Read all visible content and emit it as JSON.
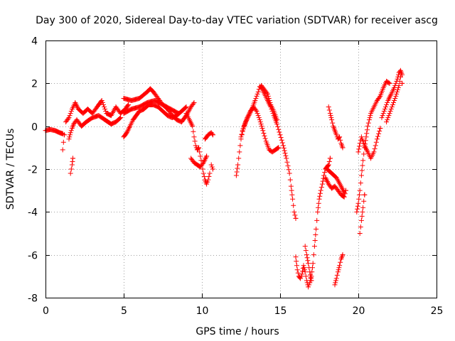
{
  "chart_data": {
    "type": "scatter",
    "title": "Day 300 of 2020, Sidereal Day-to-day VTEC variation (SDTVAR) for receiver ascg",
    "xlabel": "GPS time / hours",
    "ylabel": "SDTVAR / TECUs",
    "xlim": [
      0,
      25
    ],
    "ylim": [
      -8,
      4
    ],
    "xticks": [
      0,
      5,
      10,
      15,
      20,
      25
    ],
    "yticks": [
      -8,
      -6,
      -4,
      -2,
      0,
      2,
      4
    ],
    "grid": true,
    "marker": "plus",
    "color": "#ff0000",
    "series": [
      {
        "name": "SDTVAR",
        "segments": [
          [
            [
              0.0,
              -0.2
            ],
            [
              0.3,
              -0.15
            ],
            [
              0.6,
              -0.2
            ],
            [
              0.9,
              -0.3
            ],
            [
              1.1,
              -0.35
            ]
          ],
          [
            [
              1.1,
              -1.1
            ],
            [
              1.2,
              -0.4
            ]
          ],
          [
            [
              1.3,
              0.2
            ],
            [
              1.5,
              0.4
            ],
            [
              1.7,
              0.8
            ],
            [
              1.9,
              1.1
            ],
            [
              2.1,
              0.8
            ],
            [
              2.4,
              0.6
            ],
            [
              2.7,
              0.8
            ],
            [
              3.0,
              0.6
            ],
            [
              3.3,
              0.9
            ],
            [
              3.6,
              1.2
            ],
            [
              3.9,
              0.6
            ],
            [
              4.2,
              0.5
            ],
            [
              4.5,
              0.9
            ],
            [
              4.8,
              0.6
            ],
            [
              5.1,
              0.8
            ],
            [
              5.3,
              1.0
            ]
          ],
          [
            [
              1.5,
              -0.6
            ],
            [
              1.6,
              -0.3
            ],
            [
              1.7,
              -0.1
            ],
            [
              1.8,
              0.1
            ],
            [
              2.0,
              0.3
            ],
            [
              2.3,
              0.0
            ],
            [
              2.6,
              0.2
            ],
            [
              3.0,
              0.4
            ],
            [
              3.4,
              0.5
            ],
            [
              3.8,
              0.3
            ],
            [
              4.2,
              0.1
            ],
            [
              4.5,
              0.2
            ],
            [
              4.8,
              0.4
            ]
          ],
          [
            [
              1.6,
              -2.2
            ],
            [
              1.7,
              -1.8
            ],
            [
              1.75,
              -1.5
            ]
          ],
          [
            [
              5.0,
              1.3
            ],
            [
              5.5,
              1.2
            ],
            [
              6.0,
              1.3
            ],
            [
              6.5,
              1.6
            ],
            [
              6.7,
              1.75
            ],
            [
              6.9,
              1.6
            ],
            [
              7.2,
              1.3
            ],
            [
              7.5,
              1.0
            ],
            [
              7.8,
              0.8
            ],
            [
              8.1,
              0.5
            ],
            [
              8.4,
              0.3
            ],
            [
              8.7,
              0.2
            ],
            [
              9.0,
              0.5
            ],
            [
              9.3,
              0.9
            ],
            [
              9.5,
              1.1
            ]
          ],
          [
            [
              5.0,
              -0.5
            ],
            [
              5.2,
              -0.3
            ],
            [
              5.4,
              0.0
            ],
            [
              5.6,
              0.3
            ],
            [
              5.8,
              0.5
            ],
            [
              6.0,
              0.7
            ],
            [
              6.3,
              0.8
            ],
            [
              6.6,
              1.0
            ],
            [
              6.9,
              1.0
            ],
            [
              7.2,
              0.9
            ],
            [
              7.5,
              0.7
            ],
            [
              7.8,
              0.5
            ],
            [
              8.1,
              0.4
            ],
            [
              8.4,
              0.5
            ],
            [
              8.7,
              0.7
            ],
            [
              9.0,
              0.9
            ]
          ],
          [
            [
              5.0,
              0.6
            ],
            [
              5.5,
              0.8
            ],
            [
              6.0,
              0.9
            ],
            [
              6.5,
              1.1
            ],
            [
              7.0,
              1.2
            ],
            [
              7.5,
              1.0
            ],
            [
              8.0,
              0.8
            ],
            [
              8.5,
              0.6
            ]
          ],
          [
            [
              9.0,
              0.6
            ],
            [
              9.2,
              0.3
            ],
            [
              9.4,
              0.0
            ],
            [
              9.5,
              -0.5
            ],
            [
              9.6,
              -0.9
            ],
            [
              9.7,
              -1.1
            ],
            [
              9.8,
              -1.0
            ],
            [
              9.9,
              -1.4
            ],
            [
              10.0,
              -1.8
            ],
            [
              10.1,
              -2.2
            ],
            [
              10.2,
              -2.5
            ],
            [
              10.3,
              -2.7
            ],
            [
              10.4,
              -2.5
            ],
            [
              10.5,
              -2.2
            ]
          ],
          [
            [
              9.3,
              -1.5
            ],
            [
              9.5,
              -1.7
            ],
            [
              9.7,
              -1.8
            ],
            [
              9.9,
              -1.9
            ],
            [
              10.1,
              -1.7
            ],
            [
              10.3,
              -1.4
            ]
          ],
          [
            [
              10.2,
              -0.6
            ],
            [
              10.4,
              -0.4
            ],
            [
              10.6,
              -0.3
            ],
            [
              10.7,
              -0.4
            ]
          ],
          [
            [
              10.6,
              -1.8
            ],
            [
              10.7,
              -2.0
            ]
          ],
          [
            [
              12.2,
              -2.3
            ],
            [
              12.3,
              -1.8
            ],
            [
              12.4,
              -1.2
            ],
            [
              12.5,
              -0.6
            ],
            [
              12.6,
              -0.2
            ],
            [
              12.8,
              0.2
            ],
            [
              13.0,
              0.5
            ],
            [
              13.2,
              0.8
            ],
            [
              13.4,
              1.2
            ],
            [
              13.6,
              1.6
            ],
            [
              13.7,
              1.85
            ],
            [
              13.8,
              1.8
            ],
            [
              14.0,
              1.5
            ],
            [
              14.2,
              1.2
            ],
            [
              14.4,
              0.9
            ],
            [
              14.6,
              0.5
            ],
            [
              14.8,
              0.1
            ],
            [
              15.0,
              -0.4
            ],
            [
              15.2,
              -0.9
            ],
            [
              15.4,
              -1.5
            ],
            [
              15.6,
              -2.2
            ],
            [
              15.7,
              -2.8
            ],
            [
              15.8,
              -3.4
            ],
            [
              15.9,
              -4.0
            ],
            [
              16.0,
              -4.3
            ]
          ],
          [
            [
              12.5,
              -0.5
            ],
            [
              12.7,
              0.0
            ],
            [
              12.9,
              0.4
            ],
            [
              13.1,
              0.7
            ],
            [
              13.3,
              0.9
            ],
            [
              13.5,
              0.7
            ],
            [
              13.7,
              0.3
            ],
            [
              13.9,
              -0.2
            ],
            [
              14.1,
              -0.7
            ],
            [
              14.3,
              -1.1
            ],
            [
              14.5,
              -1.2
            ],
            [
              14.7,
              -1.1
            ],
            [
              14.9,
              -1.0
            ]
          ],
          [
            [
              13.8,
              1.9
            ],
            [
              14.0,
              1.7
            ],
            [
              14.2,
              1.5
            ],
            [
              14.4,
              1.0
            ],
            [
              14.6,
              0.7
            ],
            [
              14.8,
              0.3
            ]
          ],
          [
            [
              16.0,
              -6.1
            ],
            [
              16.1,
              -6.7
            ],
            [
              16.2,
              -7.0
            ],
            [
              16.3,
              -7.1
            ],
            [
              16.4,
              -6.9
            ],
            [
              16.5,
              -6.5
            ],
            [
              16.6,
              -6.8
            ],
            [
              16.7,
              -7.2
            ],
            [
              16.8,
              -7.5
            ],
            [
              16.9,
              -7.3
            ],
            [
              17.0,
              -7.0
            ],
            [
              17.1,
              -6.4
            ],
            [
              17.2,
              -5.6
            ],
            [
              17.3,
              -4.8
            ],
            [
              17.4,
              -4.0
            ],
            [
              17.5,
              -3.4
            ],
            [
              17.6,
              -3.0
            ],
            [
              17.7,
              -2.7
            ],
            [
              17.8,
              -2.3
            ],
            [
              17.9,
              -2.0
            ],
            [
              18.0,
              -1.9
            ],
            [
              18.1,
              -1.8
            ],
            [
              18.2,
              -1.5
            ]
          ],
          [
            [
              16.6,
              -5.6
            ],
            [
              16.7,
              -6.0
            ],
            [
              16.8,
              -6.4
            ],
            [
              16.9,
              -6.8
            ],
            [
              17.0,
              -7.2
            ]
          ],
          [
            [
              17.9,
              -2.4
            ],
            [
              18.1,
              -2.7
            ],
            [
              18.3,
              -2.9
            ],
            [
              18.5,
              -2.8
            ],
            [
              18.7,
              -3.0
            ],
            [
              18.9,
              -3.2
            ],
            [
              19.1,
              -3.3
            ],
            [
              19.2,
              -3.0
            ]
          ],
          [
            [
              18.0,
              -2.0
            ],
            [
              18.3,
              -2.2
            ],
            [
              18.6,
              -2.4
            ],
            [
              18.9,
              -2.8
            ],
            [
              19.1,
              -3.1
            ]
          ],
          [
            [
              18.1,
              0.9
            ],
            [
              18.2,
              0.6
            ],
            [
              18.3,
              0.3
            ],
            [
              18.4,
              0.0
            ],
            [
              18.5,
              -0.2
            ],
            [
              18.6,
              -0.4
            ],
            [
              18.7,
              -0.6
            ],
            [
              18.8,
              -0.5
            ],
            [
              18.9,
              -0.8
            ],
            [
              19.0,
              -1.0
            ]
          ],
          [
            [
              18.5,
              -7.4
            ],
            [
              18.6,
              -7.1
            ],
            [
              18.7,
              -6.8
            ],
            [
              18.8,
              -6.5
            ],
            [
              18.9,
              -6.2
            ],
            [
              19.0,
              -6.0
            ]
          ],
          [
            [
              19.9,
              -4.0
            ],
            [
              20.0,
              -3.6
            ],
            [
              20.1,
              -3.0
            ],
            [
              20.2,
              -2.3
            ],
            [
              20.3,
              -1.6
            ],
            [
              20.4,
              -1.0
            ],
            [
              20.5,
              -0.5
            ],
            [
              20.6,
              0.0
            ],
            [
              20.7,
              0.3
            ],
            [
              20.8,
              0.6
            ],
            [
              21.0,
              0.9
            ],
            [
              21.2,
              1.2
            ],
            [
              21.4,
              1.4
            ],
            [
              21.6,
              1.8
            ],
            [
              21.8,
              2.1
            ],
            [
              22.0,
              2.0
            ]
          ],
          [
            [
              20.0,
              -1.2
            ],
            [
              20.1,
              -0.8
            ],
            [
              20.2,
              -0.5
            ],
            [
              20.4,
              -0.9
            ],
            [
              20.6,
              -1.2
            ],
            [
              20.8,
              -1.5
            ],
            [
              21.0,
              -1.2
            ],
            [
              21.2,
              -0.6
            ],
            [
              21.4,
              -0.1
            ]
          ],
          [
            [
              20.1,
              -5.0
            ],
            [
              20.2,
              -4.4
            ],
            [
              20.3,
              -3.8
            ],
            [
              20.4,
              -3.2
            ]
          ],
          [
            [
              21.5,
              0.4
            ],
            [
              21.7,
              0.8
            ],
            [
              21.9,
              1.2
            ],
            [
              22.1,
              1.5
            ],
            [
              22.3,
              1.8
            ],
            [
              22.5,
              2.2
            ],
            [
              22.6,
              2.5
            ],
            [
              22.7,
              2.6
            ],
            [
              22.8,
              2.4
            ],
            [
              22.8,
              2.0
            ]
          ],
          [
            [
              21.8,
              0.2
            ],
            [
              22.0,
              0.6
            ],
            [
              22.2,
              1.0
            ],
            [
              22.4,
              1.4
            ],
            [
              22.6,
              1.9
            ],
            [
              22.7,
              2.3
            ]
          ]
        ]
      }
    ]
  }
}
